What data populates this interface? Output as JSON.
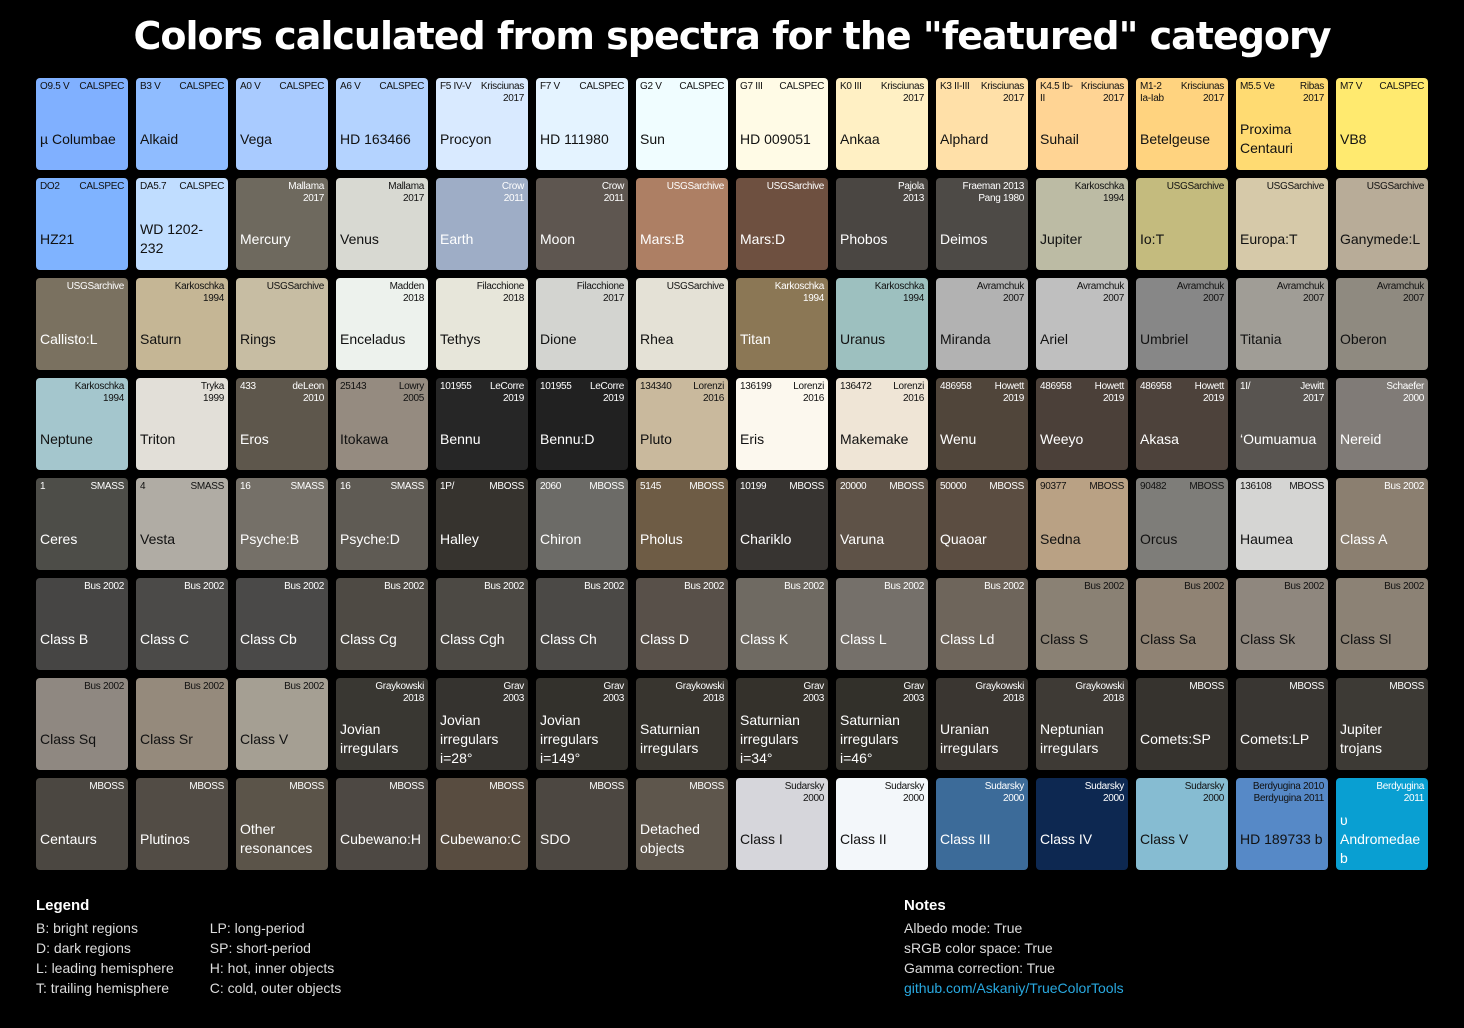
{
  "title": "Colors calculated from spectra for the \"featured\" category",
  "grid": [
    {
      "name": "µ Columbae",
      "spectral": "O9.5 V",
      "source": "CALSPEC",
      "color": "#80b0ff",
      "text": "dark"
    },
    {
      "name": "Alkaid",
      "spectral": "B3 V",
      "source": "CALSPEC",
      "color": "#8fbcff",
      "text": "dark"
    },
    {
      "name": "Vega",
      "spectral": "A0 V",
      "source": "CALSPEC",
      "color": "#a9cbff",
      "text": "dark"
    },
    {
      "name": "HD 163466",
      "spectral": "A6 V",
      "source": "CALSPEC",
      "color": "#b4d3ff",
      "text": "dark"
    },
    {
      "name": "Procyon",
      "spectral": "F5 IV-V",
      "source": "Krisciunas\n2017",
      "color": "#d9eaff",
      "text": "dark"
    },
    {
      "name": "HD 111980",
      "spectral": "F7 V",
      "source": "CALSPEC",
      "color": "#e4f3ff",
      "text": "dark"
    },
    {
      "name": "Sun",
      "spectral": "G2 V",
      "source": "CALSPEC",
      "color": "#f0fdff",
      "text": "dark"
    },
    {
      "name": "HD 009051",
      "spectral": "G7 III",
      "source": "CALSPEC",
      "color": "#fffbe6",
      "text": "dark"
    },
    {
      "name": "Ankaa",
      "spectral": "K0 III",
      "source": "Krisciunas\n2017",
      "color": "#fff0c4",
      "text": "dark"
    },
    {
      "name": "Alphard",
      "spectral": "K3 II-III",
      "source": "Krisciunas\n2017",
      "color": "#ffe0a8",
      "text": "dark"
    },
    {
      "name": "Suhail",
      "spectral": "K4.5 Ib-\nII",
      "source": "Krisciunas\n2017",
      "color": "#ffd494",
      "text": "dark"
    },
    {
      "name": "Betelgeuse",
      "spectral": "M1-2\nIa-Iab",
      "source": "Krisciunas\n2017",
      "color": "#ffd37f",
      "text": "dark"
    },
    {
      "name": "Proxima\nCentauri",
      "spectral": "M5.5 Ve",
      "source": "Ribas\n2017",
      "color": "#ffdb72",
      "text": "dark"
    },
    {
      "name": "VB8",
      "spectral": "M7 V",
      "source": "CALSPEC",
      "color": "#ffea6f",
      "text": "dark"
    },
    {
      "name": "HZ21",
      "spectral": "DO2",
      "source": "CALSPEC",
      "color": "#7fb3ff",
      "text": "dark"
    },
    {
      "name": "WD 1202-232",
      "spectral": "DA5.7",
      "source": "CALSPEC",
      "color": "#c0ddff",
      "text": "dark"
    },
    {
      "name": "Mercury",
      "spectral": "",
      "source": "Mallama\n2017",
      "color": "#6e695e",
      "text": "light"
    },
    {
      "name": "Venus",
      "spectral": "",
      "source": "Mallama\n2017",
      "color": "#d8d9d2",
      "text": "dark"
    },
    {
      "name": "Earth",
      "spectral": "",
      "source": "Crow\n2011",
      "color": "#9eadc6",
      "text": "light"
    },
    {
      "name": "Moon",
      "spectral": "",
      "source": "Crow\n2011",
      "color": "#5e5650",
      "text": "light"
    },
    {
      "name": "Mars:B",
      "spectral": "",
      "source": "USGSarchive",
      "color": "#ad7f64",
      "text": "light"
    },
    {
      "name": "Mars:D",
      "spectral": "",
      "source": "USGSarchive",
      "color": "#6e5040",
      "text": "light"
    },
    {
      "name": "Phobos",
      "spectral": "",
      "source": "Pajola\n2013",
      "color": "#4a4642",
      "text": "light"
    },
    {
      "name": "Deimos",
      "spectral": "",
      "source": "Fraeman 2013\nPang 1980",
      "color": "#4d4a46",
      "text": "light"
    },
    {
      "name": "Jupiter",
      "spectral": "",
      "source": "Karkoschka\n1994",
      "color": "#bcbba4",
      "text": "dark"
    },
    {
      "name": "Io:T",
      "spectral": "",
      "source": "USGSarchive",
      "color": "#c4bb7e",
      "text": "dark"
    },
    {
      "name": "Europa:T",
      "spectral": "",
      "source": "USGSarchive",
      "color": "#d6c9a9",
      "text": "dark"
    },
    {
      "name": "Ganymede:L",
      "spectral": "",
      "source": "USGSarchive",
      "color": "#b8ac98",
      "text": "dark"
    },
    {
      "name": "Callisto:L",
      "spectral": "",
      "source": "USGSarchive",
      "color": "#7a7160",
      "text": "light"
    },
    {
      "name": "Saturn",
      "spectral": "",
      "source": "Karkoschka\n1994",
      "color": "#c5b695",
      "text": "dark"
    },
    {
      "name": "Rings",
      "spectral": "",
      "source": "USGSarchive",
      "color": "#c7bda3",
      "text": "dark"
    },
    {
      "name": "Enceladus",
      "spectral": "",
      "source": "Madden\n2018",
      "color": "#edf2ed",
      "text": "dark"
    },
    {
      "name": "Tethys",
      "spectral": "",
      "source": "Filacchione\n2018",
      "color": "#e7e6da",
      "text": "dark"
    },
    {
      "name": "Dione",
      "spectral": "",
      "source": "Filacchione\n2017",
      "color": "#d3d4d0",
      "text": "dark"
    },
    {
      "name": "Rhea",
      "spectral": "",
      "source": "USGSarchive",
      "color": "#e4e1d6",
      "text": "dark"
    },
    {
      "name": "Titan",
      "spectral": "",
      "source": "Karkoschka\n1994",
      "color": "#8b7755",
      "text": "light"
    },
    {
      "name": "Uranus",
      "spectral": "",
      "source": "Karkoschka\n1994",
      "color": "#9dc0bf",
      "text": "dark"
    },
    {
      "name": "Miranda",
      "spectral": "",
      "source": "Avramchuk\n2007",
      "color": "#b2b2b2",
      "text": "dark"
    },
    {
      "name": "Ariel",
      "spectral": "",
      "source": "Avramchuk\n2007",
      "color": "#bfbfbf",
      "text": "dark"
    },
    {
      "name": "Umbriel",
      "spectral": "",
      "source": "Avramchuk\n2007",
      "color": "#878787",
      "text": "dark"
    },
    {
      "name": "Titania",
      "spectral": "",
      "source": "Avramchuk\n2007",
      "color": "#a09d96",
      "text": "dark"
    },
    {
      "name": "Oberon",
      "spectral": "",
      "source": "Avramchuk\n2007",
      "color": "#8f8a80",
      "text": "dark"
    },
    {
      "name": "Neptune",
      "spectral": "",
      "source": "Karkoschka\n1994",
      "color": "#a4c6cd",
      "text": "dark"
    },
    {
      "name": "Triton",
      "spectral": "",
      "source": "Tryka\n1999",
      "color": "#e2dfd8",
      "text": "dark"
    },
    {
      "name": "Eros",
      "spectral": "433",
      "source": "deLeon\n2010",
      "color": "#5e574c",
      "text": "light"
    },
    {
      "name": "Itokawa",
      "spectral": "25143",
      "source": "Lowry\n2005",
      "color": "#958b80",
      "text": "dark"
    },
    {
      "name": "Bennu",
      "spectral": "101955",
      "source": "LeCorre\n2019",
      "color": "#262626",
      "text": "light"
    },
    {
      "name": "Bennu:D",
      "spectral": "101955",
      "source": "LeCorre\n2019",
      "color": "#212121",
      "text": "light"
    },
    {
      "name": "Pluto",
      "spectral": "134340",
      "source": "Lorenzi\n2016",
      "color": "#c9b99d",
      "text": "dark"
    },
    {
      "name": "Eris",
      "spectral": "136199",
      "source": "Lorenzi\n2016",
      "color": "#fcf8ee",
      "text": "dark"
    },
    {
      "name": "Makemake",
      "spectral": "136472",
      "source": "Lorenzi\n2016",
      "color": "#efe5d6",
      "text": "dark"
    },
    {
      "name": "Wenu",
      "spectral": "486958",
      "source": "Howett\n2019",
      "color": "#50453a",
      "text": "light"
    },
    {
      "name": "Weeyo",
      "spectral": "486958",
      "source": "Howett\n2019",
      "color": "#4b4039",
      "text": "light"
    },
    {
      "name": "Akasa",
      "spectral": "486958",
      "source": "Howett\n2019",
      "color": "#4d423b",
      "text": "light"
    },
    {
      "name": "‘Oumuamua",
      "spectral": "1I/",
      "source": "Jewitt\n2017",
      "color": "#585450",
      "text": "light"
    },
    {
      "name": "Nereid",
      "spectral": "",
      "source": "Schaefer\n2000",
      "color": "#807b77",
      "text": "light"
    },
    {
      "name": "Ceres",
      "spectral": "1",
      "source": "SMASS",
      "color": "#4d4d48",
      "text": "light"
    },
    {
      "name": "Vesta",
      "spectral": "4",
      "source": "SMASS",
      "color": "#b0aca4",
      "text": "dark"
    },
    {
      "name": "Psyche:B",
      "spectral": "16",
      "source": "SMASS",
      "color": "#757068",
      "text": "light"
    },
    {
      "name": "Psyche:D",
      "spectral": "16",
      "source": "SMASS",
      "color": "#5f5b54",
      "text": "light"
    },
    {
      "name": "Halley",
      "spectral": "1P/",
      "source": "MBOSS",
      "color": "#36332e",
      "text": "light"
    },
    {
      "name": "Chiron",
      "spectral": "2060",
      "source": "MBOSS",
      "color": "#6c6b67",
      "text": "light"
    },
    {
      "name": "Pholus",
      "spectral": "5145",
      "source": "MBOSS",
      "color": "#6e5c45",
      "text": "light"
    },
    {
      "name": "Chariklo",
      "spectral": "10199",
      "source": "MBOSS",
      "color": "#373431",
      "text": "light"
    },
    {
      "name": "Varuna",
      "spectral": "20000",
      "source": "MBOSS",
      "color": "#5e5247",
      "text": "light"
    },
    {
      "name": "Quaoar",
      "spectral": "50000",
      "source": "MBOSS",
      "color": "#5b4d41",
      "text": "light"
    },
    {
      "name": "Sedna",
      "spectral": "90377",
      "source": "MBOSS",
      "color": "#b9a184",
      "text": "dark"
    },
    {
      "name": "Orcus",
      "spectral": "90482",
      "source": "MBOSS",
      "color": "#7e7d79",
      "text": "dark"
    },
    {
      "name": "Haumea",
      "spectral": "136108",
      "source": "MBOSS",
      "color": "#d5d5d3",
      "text": "dark"
    },
    {
      "name": "Class A",
      "spectral": "",
      "source": "Bus 2002",
      "color": "#8b7f70",
      "text": "light"
    },
    {
      "name": "Class B",
      "spectral": "",
      "source": "Bus 2002",
      "color": "#464544",
      "text": "light"
    },
    {
      "name": "Class C",
      "spectral": "",
      "source": "Bus 2002",
      "color": "#4b4a48",
      "text": "light"
    },
    {
      "name": "Class Cb",
      "spectral": "",
      "source": "Bus 2002",
      "color": "#4a4948",
      "text": "light"
    },
    {
      "name": "Class Cg",
      "spectral": "",
      "source": "Bus 2002",
      "color": "#4e4a44",
      "text": "light"
    },
    {
      "name": "Class Cgh",
      "spectral": "",
      "source": "Bus 2002",
      "color": "#4c4944",
      "text": "light"
    },
    {
      "name": "Class Ch",
      "spectral": "",
      "source": "Bus 2002",
      "color": "#4b4946",
      "text": "light"
    },
    {
      "name": "Class D",
      "spectral": "",
      "source": "Bus 2002",
      "color": "#585049",
      "text": "light"
    },
    {
      "name": "Class K",
      "spectral": "",
      "source": "Bus 2002",
      "color": "#6f6a62",
      "text": "light"
    },
    {
      "name": "Class L",
      "spectral": "",
      "source": "Bus 2002",
      "color": "#75706a",
      "text": "light"
    },
    {
      "name": "Class Ld",
      "spectral": "",
      "source": "Bus 2002",
      "color": "#6e655b",
      "text": "light"
    },
    {
      "name": "Class S",
      "spectral": "",
      "source": "Bus 2002",
      "color": "#8a8174",
      "text": "dark"
    },
    {
      "name": "Class Sa",
      "spectral": "",
      "source": "Bus 2002",
      "color": "#908374",
      "text": "dark"
    },
    {
      "name": "Class Sk",
      "spectral": "",
      "source": "Bus 2002",
      "color": "#8f877e",
      "text": "dark"
    },
    {
      "name": "Class Sl",
      "spectral": "",
      "source": "Bus 2002",
      "color": "#8c8275",
      "text": "dark"
    },
    {
      "name": "Class Sq",
      "spectral": "",
      "source": "Bus 2002",
      "color": "#8f8881",
      "text": "dark"
    },
    {
      "name": "Class Sr",
      "spectral": "",
      "source": "Bus 2002",
      "color": "#958a7c",
      "text": "dark"
    },
    {
      "name": "Class V",
      "spectral": "",
      "source": "Bus 2002",
      "color": "#a59f93",
      "text": "dark"
    },
    {
      "name": "Jovian\nirregulars",
      "spectral": "",
      "source": "Graykowski\n2018",
      "color": "#393732",
      "text": "light"
    },
    {
      "name": "Jovian\nirregulars\ni=28°",
      "spectral": "",
      "source": "Grav\n2003",
      "color": "#35332f",
      "text": "light"
    },
    {
      "name": "Jovian\nirregulars\ni=149°",
      "spectral": "",
      "source": "Grav\n2003",
      "color": "#33312c",
      "text": "light"
    },
    {
      "name": "Saturnian\nirregulars",
      "spectral": "",
      "source": "Graykowski\n2018",
      "color": "#38352f",
      "text": "light"
    },
    {
      "name": "Saturnian\nirregulars\ni=34°",
      "spectral": "",
      "source": "Grav\n2003",
      "color": "#34312b",
      "text": "light"
    },
    {
      "name": "Saturnian\nirregulars\ni=46°",
      "spectral": "",
      "source": "Grav\n2003",
      "color": "#32302a",
      "text": "light"
    },
    {
      "name": "Uranian\nirregulars",
      "spectral": "",
      "source": "Graykowski\n2018",
      "color": "#3a3631",
      "text": "light"
    },
    {
      "name": "Neptunian\nirregulars",
      "spectral": "",
      "source": "Graykowski\n2018",
      "color": "#3e3a35",
      "text": "light"
    },
    {
      "name": "Comets:SP",
      "spectral": "",
      "source": "MBOSS",
      "color": "#36332e",
      "text": "light"
    },
    {
      "name": "Comets:LP",
      "spectral": "",
      "source": "MBOSS",
      "color": "#393632",
      "text": "light"
    },
    {
      "name": "Jupiter trojans",
      "spectral": "",
      "source": "MBOSS",
      "color": "#3d3a35",
      "text": "light"
    },
    {
      "name": "Centaurs",
      "spectral": "",
      "source": "MBOSS",
      "color": "#4b4741",
      "text": "light"
    },
    {
      "name": "Plutinos",
      "spectral": "",
      "source": "MBOSS",
      "color": "#524c45",
      "text": "light"
    },
    {
      "name": "Other\nresonances",
      "spectral": "",
      "source": "MBOSS",
      "color": "#5b5449",
      "text": "light"
    },
    {
      "name": "Cubewano:H",
      "spectral": "",
      "source": "MBOSS",
      "color": "#4d4843",
      "text": "light"
    },
    {
      "name": "Cubewano:C",
      "spectral": "",
      "source": "MBOSS",
      "color": "#584c40",
      "text": "light"
    },
    {
      "name": "SDO",
      "spectral": "",
      "source": "MBOSS",
      "color": "#4c4741",
      "text": "light"
    },
    {
      "name": "Detached\nobjects",
      "spectral": "",
      "source": "MBOSS",
      "color": "#5e564c",
      "text": "light"
    },
    {
      "name": "Class I",
      "spectral": "",
      "source": "Sudarsky\n2000",
      "color": "#d6d6db",
      "text": "dark"
    },
    {
      "name": "Class II",
      "spectral": "",
      "source": "Sudarsky\n2000",
      "color": "#f3f7fa",
      "text": "dark"
    },
    {
      "name": "Class III",
      "spectral": "",
      "source": "Sudarsky\n2000",
      "color": "#3c6b99",
      "text": "light"
    },
    {
      "name": "Class IV",
      "spectral": "",
      "source": "Sudarsky\n2000",
      "color": "#0d2851",
      "text": "light"
    },
    {
      "name": "Class V",
      "spectral": "",
      "source": "Sudarsky\n2000",
      "color": "#86bcd2",
      "text": "dark"
    },
    {
      "name": "HD 189733 b",
      "spectral": "",
      "source": "Berdyugina 2010\nBerdyugina 2011",
      "color": "#5689c7",
      "text": "dark"
    },
    {
      "name": "υ Andromedae\nb",
      "spectral": "",
      "source": "Berdyugina\n2011",
      "color": "#099fd2",
      "text": "light"
    }
  ],
  "legend": {
    "title": "Legend",
    "col1": [
      "B: bright regions",
      "D: dark regions",
      "L: leading hemisphere",
      "T: trailing hemisphere"
    ],
    "col2": [
      "LP: long-period",
      "SP: short-period",
      "H: hot, inner objects",
      "C: cold, outer objects"
    ]
  },
  "notes": {
    "title": "Notes",
    "lines": [
      "Albedo mode: True",
      "sRGB color space: True",
      "Gamma correction: True"
    ],
    "link": "github.com/Askaniy/TrueColorTools",
    "link_color": "#29a9e0"
  }
}
